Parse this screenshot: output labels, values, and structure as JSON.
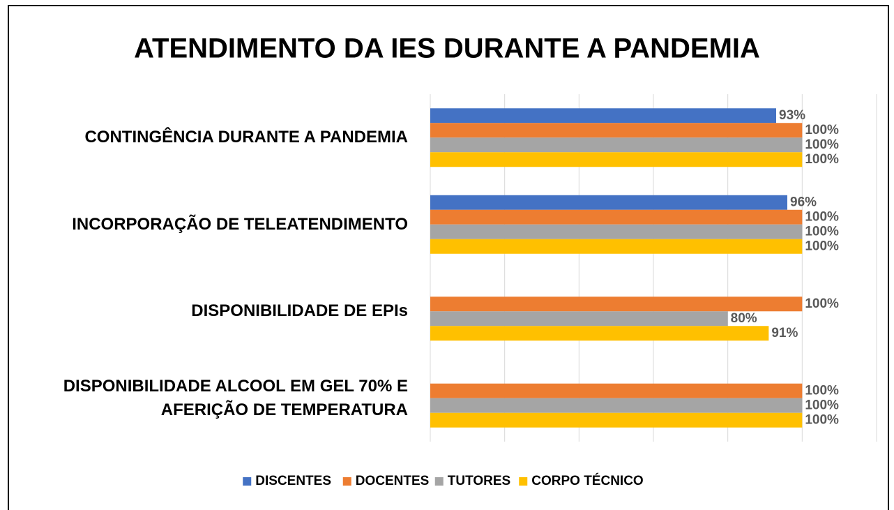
{
  "chart_data": {
    "type": "hbar",
    "title": "ATENDIMENTO DA IES DURANTE A PANDEMIA",
    "categories": [
      "CONTINGÊNCIA DURANTE A PANDEMIA",
      "INCORPORAÇÃO DE TELEATENDIMENTO",
      "DISPONIBILIDADE DE EPIs",
      "DISPONIBILIDADE ALCOOL EM GEL 70% E\nAFERIÇÃO DE TEMPERATURA"
    ],
    "series": [
      {
        "name": "DISCENTES",
        "color": "#4472c4",
        "values": [
          93,
          96,
          null,
          null
        ],
        "value_labels": [
          "93%",
          "96%",
          null,
          null
        ]
      },
      {
        "name": "DOCENTES",
        "color": "#ed7d31",
        "values": [
          100,
          100,
          100,
          100
        ],
        "value_labels": [
          "100%",
          "100%",
          "100%",
          "100%"
        ]
      },
      {
        "name": "TUTORES",
        "color": "#a5a5a5",
        "values": [
          100,
          100,
          80,
          100
        ],
        "value_labels": [
          "100%",
          "100%",
          "80%",
          "100%"
        ]
      },
      {
        "name": "CORPO TÉCNICO",
        "color": "#ffc000",
        "values": [
          100,
          100,
          91,
          100
        ],
        "value_labels": [
          "100%",
          "100%",
          "91%",
          "100%"
        ]
      }
    ],
    "xlim": [
      0,
      120
    ],
    "xticks": [
      0,
      20,
      40,
      60,
      80,
      100,
      120
    ],
    "grid": true,
    "legend": "bottom"
  }
}
